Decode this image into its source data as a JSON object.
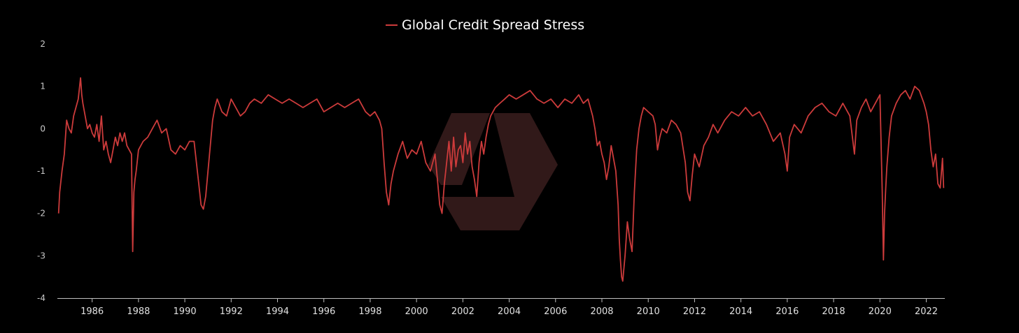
{
  "chart_data": {
    "type": "line",
    "title": "",
    "xlabel": "",
    "ylabel": "",
    "ylim": [
      -4,
      2
    ],
    "xlim": [
      1984.5,
      2022.8
    ],
    "grid": false,
    "legend_position": "top-center",
    "y_ticks": [
      2,
      1,
      0,
      -1,
      -2,
      -3,
      -4
    ],
    "x_ticks": [
      1986,
      1988,
      1990,
      1992,
      1994,
      1996,
      1998,
      2000,
      2002,
      2004,
      2006,
      2008,
      2010,
      2012,
      2014,
      2016,
      2018,
      2020,
      2022
    ],
    "series": [
      {
        "name": "Global Credit Spread Stress",
        "color": "#cc3b3b",
        "x": [
          1984.55,
          1984.6,
          1984.7,
          1984.8,
          1984.9,
          1985.0,
          1985.1,
          1985.2,
          1985.3,
          1985.4,
          1985.5,
          1985.55,
          1985.6,
          1985.7,
          1985.8,
          1985.9,
          1986.0,
          1986.1,
          1986.2,
          1986.3,
          1986.4,
          1986.5,
          1986.6,
          1986.7,
          1986.8,
          1986.9,
          1987.0,
          1987.1,
          1987.2,
          1987.3,
          1987.4,
          1987.5,
          1987.6,
          1987.7,
          1987.75,
          1987.8,
          1987.85,
          1987.9,
          1988.0,
          1988.2,
          1988.4,
          1988.6,
          1988.8,
          1989.0,
          1989.2,
          1989.4,
          1989.6,
          1989.8,
          1990.0,
          1990.2,
          1990.4,
          1990.6,
          1990.7,
          1990.8,
          1990.9,
          1991.0,
          1991.1,
          1991.2,
          1991.3,
          1991.4,
          1991.6,
          1991.8,
          1992.0,
          1992.2,
          1992.4,
          1992.6,
          1992.8,
          1993.0,
          1993.3,
          1993.6,
          1993.9,
          1994.2,
          1994.5,
          1994.8,
          1995.1,
          1995.4,
          1995.7,
          1996.0,
          1996.3,
          1996.6,
          1996.9,
          1997.2,
          1997.5,
          1997.8,
          1998.0,
          1998.2,
          1998.4,
          1998.5,
          1998.6,
          1998.7,
          1998.8,
          1998.9,
          1999.0,
          1999.2,
          1999.4,
          1999.6,
          1999.8,
          2000.0,
          2000.2,
          2000.4,
          2000.6,
          2000.8,
          2000.9,
          2001.0,
          2001.1,
          2001.2,
          2001.3,
          2001.4,
          2001.5,
          2001.6,
          2001.7,
          2001.8,
          2001.9,
          2002.0,
          2002.1,
          2002.2,
          2002.3,
          2002.4,
          2002.5,
          2002.6,
          2002.7,
          2002.8,
          2002.9,
          2003.0,
          2003.1,
          2003.2,
          2003.4,
          2003.6,
          2003.8,
          2004.0,
          2004.3,
          2004.6,
          2004.9,
          2005.2,
          2005.5,
          2005.8,
          2006.1,
          2006.4,
          2006.7,
          2007.0,
          2007.2,
          2007.4,
          2007.5,
          2007.6,
          2007.7,
          2007.8,
          2007.9,
          2008.0,
          2008.1,
          2008.2,
          2008.3,
          2008.4,
          2008.5,
          2008.6,
          2008.7,
          2008.75,
          2008.8,
          2008.85,
          2008.9,
          2009.0,
          2009.1,
          2009.2,
          2009.3,
          2009.4,
          2009.5,
          2009.6,
          2009.7,
          2009.8,
          2010.0,
          2010.2,
          2010.3,
          2010.4,
          2010.5,
          2010.6,
          2010.8,
          2011.0,
          2011.2,
          2011.4,
          2011.6,
          2011.7,
          2011.8,
          2011.9,
          2012.0,
          2012.2,
          2012.4,
          2012.6,
          2012.8,
          2013.0,
          2013.3,
          2013.6,
          2013.9,
          2014.2,
          2014.5,
          2014.8,
          2015.1,
          2015.4,
          2015.7,
          2015.9,
          2016.0,
          2016.1,
          2016.3,
          2016.6,
          2016.9,
          2017.2,
          2017.5,
          2017.8,
          2018.1,
          2018.4,
          2018.7,
          2018.9,
          2019.0,
          2019.2,
          2019.4,
          2019.6,
          2019.8,
          2020.0,
          2020.1,
          2020.15,
          2020.2,
          2020.25,
          2020.3,
          2020.4,
          2020.5,
          2020.7,
          2020.9,
          2021.1,
          2021.3,
          2021.5,
          2021.7,
          2021.9,
          2022.0,
          2022.1,
          2022.2,
          2022.3,
          2022.4,
          2022.5,
          2022.6,
          2022.7,
          2022.75
        ],
        "values": [
          -2.0,
          -1.5,
          -1.0,
          -0.6,
          0.2,
          0.0,
          -0.1,
          0.3,
          0.5,
          0.7,
          1.2,
          0.8,
          0.6,
          0.3,
          0.0,
          0.1,
          -0.1,
          -0.2,
          0.1,
          -0.3,
          0.3,
          -0.5,
          -0.3,
          -0.6,
          -0.8,
          -0.5,
          -0.2,
          -0.4,
          -0.1,
          -0.3,
          -0.1,
          -0.4,
          -0.5,
          -0.6,
          -2.9,
          -1.5,
          -1.2,
          -1.0,
          -0.5,
          -0.3,
          -0.2,
          0.0,
          0.2,
          -0.1,
          0.0,
          -0.5,
          -0.6,
          -0.4,
          -0.5,
          -0.3,
          -0.3,
          -1.3,
          -1.8,
          -1.9,
          -1.6,
          -1.0,
          -0.4,
          0.2,
          0.5,
          0.7,
          0.4,
          0.3,
          0.7,
          0.5,
          0.3,
          0.4,
          0.6,
          0.7,
          0.6,
          0.8,
          0.7,
          0.6,
          0.7,
          0.6,
          0.5,
          0.6,
          0.7,
          0.4,
          0.5,
          0.6,
          0.5,
          0.6,
          0.7,
          0.4,
          0.3,
          0.4,
          0.2,
          0.0,
          -0.8,
          -1.5,
          -1.8,
          -1.3,
          -1.0,
          -0.6,
          -0.3,
          -0.7,
          -0.5,
          -0.6,
          -0.3,
          -0.8,
          -1.0,
          -0.6,
          -1.2,
          -1.8,
          -2.0,
          -1.3,
          -0.8,
          -0.3,
          -1.0,
          -0.2,
          -0.9,
          -0.5,
          -0.4,
          -0.8,
          -0.1,
          -0.6,
          -0.3,
          -0.9,
          -1.2,
          -1.6,
          -0.8,
          -0.3,
          -0.6,
          -0.2,
          0.1,
          0.3,
          0.5,
          0.6,
          0.7,
          0.8,
          0.7,
          0.8,
          0.9,
          0.7,
          0.6,
          0.7,
          0.5,
          0.7,
          0.6,
          0.8,
          0.6,
          0.7,
          0.5,
          0.3,
          0.0,
          -0.4,
          -0.3,
          -0.6,
          -0.8,
          -1.2,
          -0.9,
          -0.4,
          -0.7,
          -1.0,
          -1.8,
          -2.6,
          -3.1,
          -3.5,
          -3.6,
          -3.0,
          -2.2,
          -2.6,
          -2.9,
          -1.5,
          -0.5,
          0.0,
          0.3,
          0.5,
          0.4,
          0.3,
          0.1,
          -0.5,
          -0.2,
          0.0,
          -0.1,
          0.2,
          0.1,
          -0.1,
          -0.8,
          -1.5,
          -1.7,
          -1.1,
          -0.6,
          -0.9,
          -0.4,
          -0.2,
          0.1,
          -0.1,
          0.2,
          0.4,
          0.3,
          0.5,
          0.3,
          0.4,
          0.1,
          -0.3,
          -0.1,
          -0.6,
          -1.0,
          -0.2,
          0.1,
          -0.1,
          0.3,
          0.5,
          0.6,
          0.4,
          0.3,
          0.6,
          0.3,
          -0.6,
          0.2,
          0.5,
          0.7,
          0.4,
          0.6,
          0.8,
          -1.5,
          -3.1,
          -2.0,
          -1.4,
          -0.9,
          -0.2,
          0.3,
          0.6,
          0.8,
          0.9,
          0.7,
          1.0,
          0.9,
          0.6,
          0.4,
          0.1,
          -0.5,
          -0.9,
          -0.6,
          -1.3,
          -1.4,
          -0.7,
          -1.4
        ]
      }
    ]
  },
  "watermark": {
    "name": "logo-watermark",
    "color": "#3a1d1d"
  }
}
